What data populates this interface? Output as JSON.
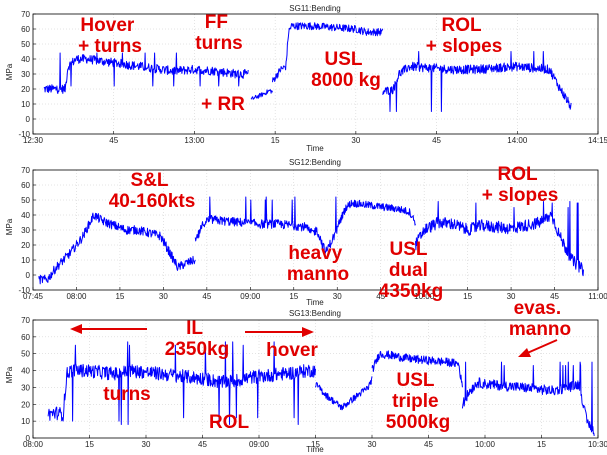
{
  "chart_data": [
    {
      "type": "line",
      "title": "SG11:Bending",
      "xlabel": "Time",
      "ylabel": "MPa",
      "ylim": [
        -10,
        70
      ],
      "yticks": [
        -10,
        0,
        10,
        20,
        30,
        40,
        50,
        60,
        70
      ],
      "xlim": [
        0,
        105
      ],
      "xticks": [
        {
          "v": 0,
          "label": "12:30"
        },
        {
          "v": 15,
          "label": "45"
        },
        {
          "v": 30,
          "label": "13:00"
        },
        {
          "v": 45,
          "label": "15"
        },
        {
          "v": 60,
          "label": "30"
        },
        {
          "v": 75,
          "label": "45"
        },
        {
          "v": 90,
          "label": "14:00"
        },
        {
          "v": 105,
          "label": "14:15"
        }
      ],
      "grid": true,
      "series": [
        {
          "color": "#0000ff",
          "segments": [
            {
              "x": [
                2,
                6,
                6.5,
                8,
                10,
                14,
                18,
                22,
                26,
                30,
                34,
                38,
                40
              ],
              "y": [
                20,
                20,
                35,
                40,
                40,
                38,
                36,
                34,
                32,
                33,
                32,
                30,
                30
              ],
              "noise": 3,
              "spikes": [
                22,
                44
              ]
            },
            {
              "x": [
                40.5,
                43,
                44,
                44.5
              ],
              "y": [
                13,
                17,
                19,
                18
              ],
              "noise": 1.5
            },
            {
              "x": [
                44.5,
                46,
                47,
                47.5,
                48,
                52,
                56,
                60,
                62,
                65
              ],
              "y": [
                25,
                33,
                35,
                58,
                62,
                62,
                61,
                60,
                58,
                58
              ],
              "noise": 2.5
            },
            {
              "x": [
                65,
                67,
                68,
                70,
                74,
                78,
                82,
                86,
                90,
                93,
                96,
                98,
                100
              ],
              "y": [
                18,
                20,
                30,
                35,
                34,
                33,
                33,
                34,
                35,
                34,
                33,
                20,
                8
              ],
              "noise": 3,
              "spikes": [
                5,
                45
              ]
            }
          ]
        }
      ]
    },
    {
      "type": "line",
      "title": "SG12:Bending",
      "xlabel": "Time",
      "ylabel": "MPa",
      "ylim": [
        -10,
        70
      ],
      "yticks": [
        -10,
        0,
        10,
        20,
        30,
        40,
        50,
        60,
        70
      ],
      "xlim": [
        0,
        195
      ],
      "xticks": [
        {
          "v": 0,
          "label": "07:45"
        },
        {
          "v": 15,
          "label": "08:00"
        },
        {
          "v": 30,
          "label": "15"
        },
        {
          "v": 45,
          "label": "30"
        },
        {
          "v": 60,
          "label": "45"
        },
        {
          "v": 75,
          "label": "09:00"
        },
        {
          "v": 90,
          "label": "15"
        },
        {
          "v": 105,
          "label": "30"
        },
        {
          "v": 120,
          "label": "45"
        },
        {
          "v": 135,
          "label": "10:00"
        },
        {
          "v": 150,
          "label": "15"
        },
        {
          "v": 165,
          "label": "30"
        },
        {
          "v": 180,
          "label": "45"
        },
        {
          "v": 195,
          "label": "11:00"
        }
      ],
      "grid": true,
      "series": [
        {
          "color": "#0000ff",
          "segments": [
            {
              "x": [
                2,
                5,
                8,
                13,
                17,
                21,
                24,
                28,
                32,
                36,
                40,
                44,
                50,
                53,
                56
              ],
              "y": [
                -3,
                -3,
                5,
                15,
                25,
                40,
                36,
                33,
                30,
                30,
                28,
                26,
                5,
                8,
                10
              ],
              "noise": 3
            },
            {
              "x": [
                56,
                59,
                61,
                66,
                72,
                78,
                84,
                90,
                94,
                96,
                98,
                101,
                105
              ],
              "y": [
                22,
                35,
                37,
                36,
                35,
                34,
                34,
                33,
                32,
                28,
                30,
                15,
                30
              ],
              "noise": 3,
              "spikes": [
                50,
                52
              ]
            },
            {
              "x": [
                105,
                108,
                110,
                114,
                118,
                122,
                126,
                130,
                132
              ],
              "y": [
                32,
                45,
                48,
                47,
                46,
                45,
                44,
                42,
                35
              ],
              "noise": 2.5
            },
            {
              "x": [
                132,
                135,
                140,
                145,
                150,
                155,
                160,
                165,
                170,
                175,
                179,
                182,
                186,
                190
              ],
              "y": [
                20,
                30,
                35,
                34,
                30,
                33,
                32,
                31,
                33,
                35,
                40,
                25,
                10,
                3
              ],
              "noise": 4,
              "spikes": [
                45,
                48,
                49
              ]
            }
          ]
        }
      ]
    },
    {
      "type": "line",
      "title": "SG13:Bending",
      "xlabel": "Time",
      "ylabel": "MPa",
      "ylim": [
        0,
        70
      ],
      "yticks": [
        0,
        10,
        20,
        30,
        40,
        50,
        60,
        70
      ],
      "xlim": [
        0,
        150
      ],
      "xticks": [
        {
          "v": 0,
          "label": "08:00"
        },
        {
          "v": 15,
          "label": "15"
        },
        {
          "v": 30,
          "label": "30"
        },
        {
          "v": 45,
          "label": "45"
        },
        {
          "v": 60,
          "label": "09:00"
        },
        {
          "v": 75,
          "label": "15"
        },
        {
          "v": 90,
          "label": "30"
        },
        {
          "v": 105,
          "label": "45"
        },
        {
          "v": 120,
          "label": "10:00"
        },
        {
          "v": 135,
          "label": "15"
        },
        {
          "v": 150,
          "label": "10:30"
        }
      ],
      "grid": true,
      "series": [
        {
          "color": "#0000ff",
          "segments": [
            {
              "x": [
                4,
                6,
                8,
                9,
                10,
                14,
                18,
                22,
                26,
                30,
                34,
                38,
                42,
                46,
                50,
                54,
                58,
                62,
                66,
                70,
                73,
                75
              ],
              "y": [
                14,
                15,
                14,
                38,
                40,
                40,
                39,
                38,
                40,
                39,
                38,
                37,
                36,
                35,
                33,
                34,
                36,
                37,
                38,
                39,
                40,
                40
              ],
              "noise": 4,
              "spikes": [
                55,
                57,
                8,
                10,
                12
              ]
            },
            {
              "x": [
                75,
                78,
                82,
                86,
                89,
                90
              ],
              "y": [
                32,
                25,
                18,
                25,
                30,
                35
              ],
              "noise": 2
            },
            {
              "x": [
                90,
                92,
                95,
                100,
                105,
                110,
                113,
                114
              ],
              "y": [
                40,
                50,
                49,
                47,
                46,
                45,
                44,
                30
              ],
              "noise": 2.5
            },
            {
              "x": [
                114,
                116,
                118,
                120,
                125,
                130,
                134,
                138,
                142,
                145,
                147,
                149
              ],
              "y": [
                20,
                28,
                33,
                32,
                31,
                30,
                29,
                28,
                30,
                32,
                10,
                4
              ],
              "noise": 3,
              "spikes": [
                43,
                45
              ]
            }
          ]
        }
      ]
    }
  ],
  "annotations": [
    {
      "panel": 0,
      "lines": [
        "Hover",
        "+ turns"
      ]
    },
    {
      "panel": 0,
      "lines": [
        "FF",
        "turns"
      ]
    },
    {
      "panel": 0,
      "lines": [
        "+ RR"
      ]
    },
    {
      "panel": 0,
      "lines": [
        "USL",
        "8000 kg"
      ]
    },
    {
      "panel": 0,
      "lines": [
        "ROL",
        "+ slopes"
      ]
    },
    {
      "panel": 1,
      "lines": [
        "S&L",
        "40-160kts"
      ]
    },
    {
      "panel": 1,
      "lines": [
        "heavy",
        "manno"
      ]
    },
    {
      "panel": 1,
      "lines": [
        "USL",
        "dual",
        "4350kg"
      ]
    },
    {
      "panel": 1,
      "lines": [
        "ROL",
        "+ slopes"
      ]
    },
    {
      "panel": 2,
      "lines": [
        "IL",
        "2350kg"
      ]
    },
    {
      "panel": 2,
      "lines": [
        "hover"
      ]
    },
    {
      "panel": 2,
      "lines": [
        "turns"
      ]
    },
    {
      "panel": 2,
      "lines": [
        "ROL"
      ]
    },
    {
      "panel": 2,
      "lines": [
        "USL",
        "triple",
        "5000kg"
      ]
    },
    {
      "panel": 2,
      "lines": [
        "evas.",
        "manno"
      ]
    }
  ],
  "colors": {
    "trace": "#0000ff",
    "annotation": "#e00000"
  }
}
